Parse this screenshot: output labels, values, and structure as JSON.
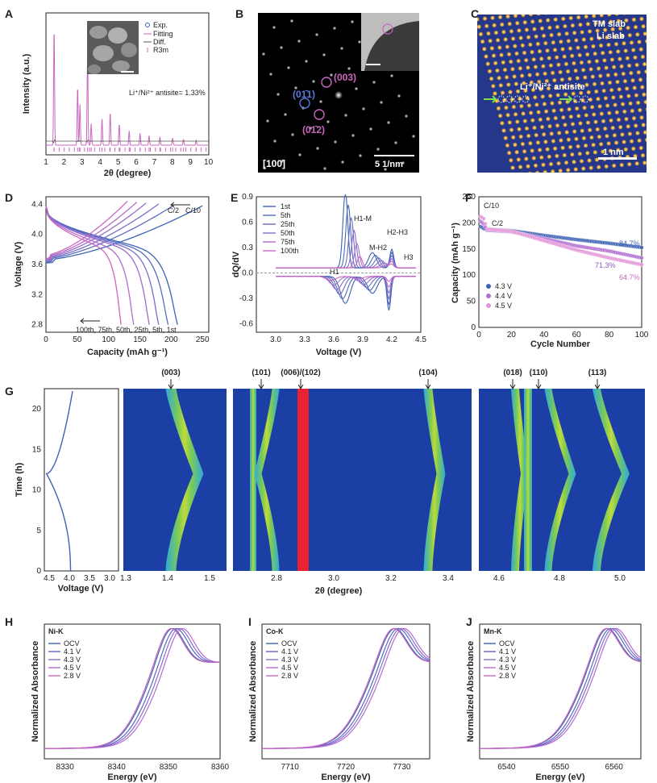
{
  "colors": {
    "blue": "#3c64b4",
    "magenta": "#cc66c0",
    "purple": "#8a5cc0",
    "lilac": "#b070d0",
    "red": "#e03040",
    "heat_bg": "#1c3fa6"
  },
  "panels": {
    "A": {
      "label": "A",
      "ylabel": "Intensity (a.u.)",
      "xlabel": "2θ (degree)",
      "legend": [
        "Exp.",
        "Fitting",
        "Diff.",
        "R3m"
      ],
      "annotation": "Li⁺/Ni²⁺ antisite= 1.33%",
      "xticks": [
        "1",
        "2",
        "3",
        "4",
        "5",
        "6",
        "7",
        "8",
        "9",
        "10"
      ]
    },
    "B": {
      "label": "B",
      "spots": [
        "(01̄1)",
        "(003)",
        "(01̄2)"
      ],
      "zone": "[100]",
      "scale": "5 1/nm"
    },
    "C": {
      "label": "C",
      "tm": "TM slab",
      "li": "Li slab",
      "antisite": "Li⁺/Ni²⁺ antisite",
      "scale": "1 nm"
    },
    "D": {
      "label": "D",
      "ylabel": "Voltage (V)",
      "xlabel": "Capacity (mAh g⁻¹)",
      "yticks": [
        "2.8",
        "3.2",
        "3.6",
        "4.0",
        "4.4"
      ],
      "xticks": [
        "0",
        "50",
        "100",
        "150",
        "200",
        "250"
      ],
      "rate_c2": "C/2",
      "rate_c10": "C/10",
      "cycles": "100th, 75th, 50th, 25th, 5th, 1st"
    },
    "E": {
      "label": "E",
      "ylabel": "dQ/dV",
      "xlabel": "Voltage (V)",
      "legend": [
        "1st",
        "5th",
        "25th",
        "50th",
        "75th",
        "100th"
      ],
      "yticks": [
        "0.9",
        "0.6",
        "0.3",
        "0.0",
        "-0.3",
        "-0.6"
      ],
      "xticks": [
        "3.0",
        "3.3",
        "3.6",
        "3.9",
        "4.2",
        "4.5"
      ],
      "peaks": [
        "H1",
        "H1-M",
        "M-H2",
        "H2-H3",
        "H3"
      ]
    },
    "F": {
      "label": "F",
      "ylabel": "Capacity (mAh g⁻¹)",
      "xlabel": "Cycle Number",
      "yticks": [
        "0",
        "50",
        "100",
        "150",
        "200",
        "250"
      ],
      "xticks": [
        "0",
        "20",
        "40",
        "60",
        "80",
        "100"
      ],
      "legend": [
        "4.3 V",
        "4.4 V",
        "4.5 V"
      ],
      "rates": [
        "C/10",
        "C/2"
      ],
      "retention": [
        "84.7%",
        "71.3%",
        "64.7%"
      ]
    },
    "G": {
      "label": "G",
      "ylabel": "Time (h)",
      "volt_label": "Voltage (V)",
      "xlabel": "2θ (degree)",
      "time_ticks": [
        "0",
        "5",
        "10",
        "15",
        "20"
      ],
      "volt_ticks": [
        "4.5",
        "4.0",
        "3.5",
        "3.0"
      ],
      "peaks1": [
        "(003)"
      ],
      "peaks2": [
        "(101)",
        "(006)/(102)",
        "(104)"
      ],
      "peaks3": [
        "(018)",
        "(110)",
        "(113)"
      ],
      "x1": [
        "1.3",
        "1.4",
        "1.5"
      ],
      "x2": [
        "2.8",
        "3.0",
        "3.2",
        "3.4"
      ],
      "x3": [
        "4.6",
        "4.8",
        "5.0"
      ]
    },
    "H": {
      "label": "H",
      "element": "Ni-K",
      "legend": [
        "OCV",
        "4.1 V",
        "4.3 V",
        "4.5 V",
        "2.8 V"
      ],
      "ylabel": "Normalized Absorbance",
      "xlabel": "Energy (eV)",
      "xticks": [
        "8330",
        "8340",
        "8350",
        "8360"
      ]
    },
    "I": {
      "label": "I",
      "element": "Co-K",
      "legend": [
        "OCV",
        "4.1 V",
        "4.3 V",
        "4.5 V",
        "2.8 V"
      ],
      "ylabel": "Normalized Absorbance",
      "xlabel": "Energy (eV)",
      "xticks": [
        "7710",
        "7720",
        "7730"
      ]
    },
    "J": {
      "label": "J",
      "element": "Mn-K",
      "legend": [
        "OCV",
        "4.1 V",
        "4.3 V",
        "4.5 V",
        "2.8 V"
      ],
      "ylabel": "Normalized Absorbance",
      "xlabel": "Energy (eV)",
      "xticks": [
        "6540",
        "6550",
        "6560"
      ]
    }
  },
  "chart_data": [
    {
      "panel": "D",
      "type": "line",
      "title": "",
      "xlabel": "Capacity (mAh g⁻¹)",
      "ylabel": "Voltage (V)",
      "xlim": [
        0,
        260
      ],
      "ylim": [
        2.7,
        4.5
      ],
      "charge": [
        {
          "name": "1st",
          "x": [
            0,
            10,
            50,
            100,
            150,
            190,
            215,
            250
          ],
          "y": [
            3.62,
            3.68,
            3.72,
            3.78,
            3.95,
            4.15,
            4.28,
            4.45
          ]
        },
        {
          "name": "100th",
          "x": [
            0,
            10,
            40,
            80,
            115,
            130
          ],
          "y": [
            3.66,
            3.8,
            3.92,
            4.05,
            4.25,
            4.45
          ]
        }
      ],
      "discharge": [
        {
          "name": "1st",
          "x": [
            0,
            10,
            40,
            80,
            130,
            170,
            200,
            210
          ],
          "y": [
            4.4,
            4.15,
            3.95,
            3.82,
            3.7,
            3.6,
            3.4,
            2.8
          ]
        },
        {
          "name": "100th",
          "x": [
            0,
            10,
            30,
            60,
            90,
            110,
            120
          ],
          "y": [
            4.38,
            4.05,
            3.85,
            3.7,
            3.5,
            3.25,
            2.8
          ]
        }
      ]
    },
    {
      "panel": "F",
      "type": "scatter",
      "title": "",
      "xlabel": "Cycle Number",
      "ylabel": "Capacity (mAh g⁻¹)",
      "xlim": [
        0,
        100
      ],
      "ylim": [
        0,
        250
      ],
      "series": [
        {
          "name": "4.3 V",
          "x": [
            1,
            3,
            5,
            20,
            40,
            60,
            80,
            100
          ],
          "y": [
            193,
            189,
            188,
            185,
            176,
            168,
            161,
            153
          ]
        },
        {
          "name": "4.4 V",
          "x": [
            1,
            3,
            5,
            20,
            40,
            60,
            80,
            100
          ],
          "y": [
            203,
            198,
            186,
            183,
            170,
            156,
            146,
            133
          ]
        },
        {
          "name": "4.5 V",
          "x": [
            1,
            3,
            5,
            20,
            40,
            60,
            80,
            100
          ],
          "y": [
            212,
            208,
            188,
            184,
            166,
            148,
            133,
            120
          ]
        }
      ]
    }
  ]
}
